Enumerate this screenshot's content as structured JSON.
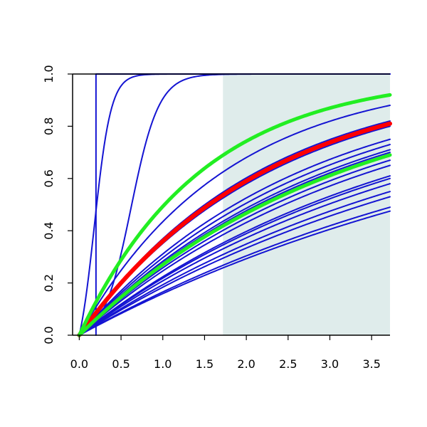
{
  "chart_data": {
    "type": "line",
    "title": "",
    "xlabel": "",
    "ylabel": "",
    "xlim": [
      -0.08,
      3.72
    ],
    "ylim": [
      0,
      1
    ],
    "grid": false,
    "legend": "none",
    "x_ticks": [
      "0.0",
      "0.5",
      "1.0",
      "1.5",
      "2.0",
      "2.5",
      "3.0",
      "3.5"
    ],
    "x_tick_values": [
      0,
      0.5,
      1,
      1.5,
      2,
      2.5,
      3,
      3.5
    ],
    "y_ticks": [
      "0.0",
      "0.2",
      "0.4",
      "0.6",
      "0.8",
      "1.0"
    ],
    "y_tick_values": [
      0,
      0.2,
      0.4,
      0.6,
      0.8,
      1
    ],
    "shaded_region": {
      "x_from": 1.72,
      "x_to": 3.72,
      "color": "#dfeceb"
    },
    "colors": {
      "blue": "#1414d2",
      "red": "#ff0000",
      "green": "#22ee22",
      "axis": "#000000"
    },
    "series": [
      {
        "kind": "step",
        "x0": 0.2,
        "value_at_end": 1.0,
        "color": "blue",
        "width": 2
      },
      {
        "kind": "logistic",
        "k": 10,
        "x0": 0.18,
        "y_at_end": 1.0,
        "color": "blue",
        "width": 2
      },
      {
        "kind": "logistic",
        "k": 6,
        "x0": 0.62,
        "y_at_end": 1.0,
        "color": "blue",
        "width": 2
      },
      {
        "kind": "exp",
        "y_at_end": 0.88,
        "color": "blue",
        "width": 2
      },
      {
        "kind": "exp",
        "y_at_end": 0.82,
        "color": "blue",
        "width": 2
      },
      {
        "kind": "exp",
        "y_at_end": 0.8,
        "color": "blue",
        "width": 2
      },
      {
        "kind": "exp",
        "y_at_end": 0.75,
        "color": "blue",
        "width": 2
      },
      {
        "kind": "exp",
        "y_at_end": 0.73,
        "color": "blue",
        "width": 2
      },
      {
        "kind": "exp",
        "y_at_end": 0.71,
        "color": "blue",
        "width": 2
      },
      {
        "kind": "exp",
        "y_at_end": 0.7,
        "color": "blue",
        "width": 2
      },
      {
        "kind": "exp",
        "y_at_end": 0.67,
        "color": "blue",
        "width": 2
      },
      {
        "kind": "exp",
        "y_at_end": 0.65,
        "color": "blue",
        "width": 2
      },
      {
        "kind": "exp",
        "y_at_end": 0.61,
        "color": "blue",
        "width": 2
      },
      {
        "kind": "exp",
        "y_at_end": 0.6,
        "color": "blue",
        "width": 2
      },
      {
        "kind": "exp",
        "y_at_end": 0.58,
        "color": "blue",
        "width": 2
      },
      {
        "kind": "exp",
        "y_at_end": 0.55,
        "color": "blue",
        "width": 2
      },
      {
        "kind": "exp",
        "y_at_end": 0.53,
        "color": "blue",
        "width": 2
      },
      {
        "kind": "exp",
        "y_at_end": 0.49,
        "color": "blue",
        "width": 2
      },
      {
        "kind": "exp",
        "y_at_end": 0.475,
        "color": "blue",
        "width": 2
      },
      {
        "kind": "exp",
        "y_at_end": 0.81,
        "color": "red",
        "width": 6
      },
      {
        "kind": "exp",
        "y_at_end": 0.69,
        "color": "green",
        "width": 5
      },
      {
        "kind": "exp",
        "y_at_end": 0.92,
        "color": "green",
        "width": 5
      }
    ]
  }
}
